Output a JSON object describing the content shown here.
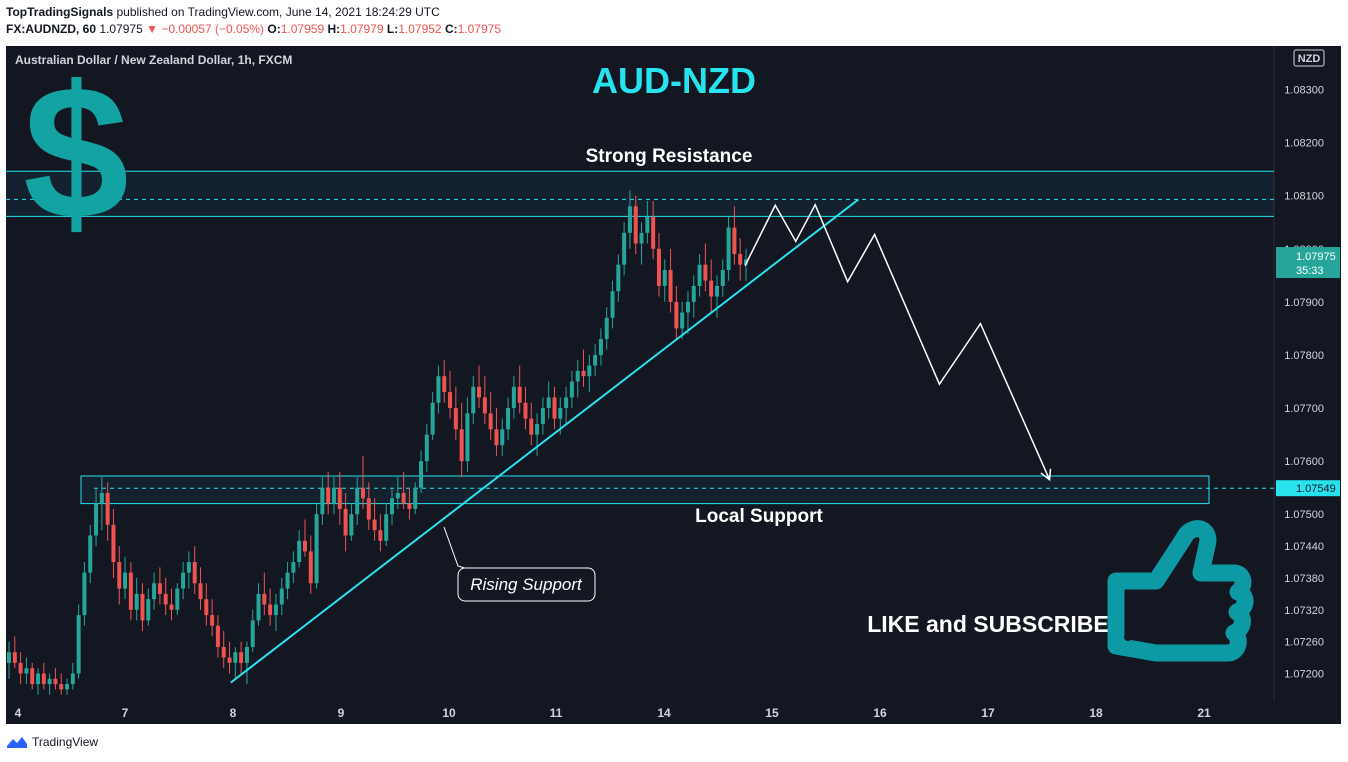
{
  "header": {
    "publisher": "TopTradingSignals",
    "published_text": "published on TradingView.com, June 14, 2021 18:24:29 UTC",
    "symbol": "FX:AUDNZD, 60",
    "last": "1.07975",
    "change": "▼ −0.00057 (−0.05%)",
    "o_label": "O:",
    "o": "1.07959",
    "h_label": "H:",
    "h": "1.07979",
    "l_label": "L:",
    "l": "1.07952",
    "c_label": "C:",
    "c": "1.07975"
  },
  "footer": {
    "brand": "TradingView"
  },
  "colors": {
    "background": "#131722",
    "up": "#26a69a",
    "down": "#ef5350",
    "accent": "#26e3ee",
    "price_tag": "#26a69a"
  },
  "chart_data": {
    "type": "candlestick",
    "instrument_label": "Australian Dollar / New Zealand Dollar, 1h, FXCM",
    "title": "AUD-NZD",
    "currency_label": "NZD",
    "price_tag": {
      "price": "1.07975",
      "countdown": "35:33"
    },
    "support_tag": "1.07549",
    "ylim": [
      1.0716,
      1.0838
    ],
    "y_ticks": [
      "1.08300",
      "1.08200",
      "1.08100",
      "1.08000",
      "1.07900",
      "1.07800",
      "1.07700",
      "1.07600",
      "1.07500",
      "1.07440",
      "1.07380",
      "1.07320",
      "1.07260",
      "1.07200"
    ],
    "x_ticks": [
      "4",
      "7",
      "8",
      "9",
      "10",
      "11",
      "14",
      "15",
      "16",
      "17",
      "18",
      "21"
    ],
    "resistance_zone": {
      "label": "Strong Resistance",
      "top": 1.08146,
      "bottom": 1.08061,
      "mid": 1.08093
    },
    "support_zone": {
      "label": "Local Support",
      "top": 1.07572,
      "bottom": 1.0752,
      "mid": 1.07549
    },
    "trendline_label": "Rising Support",
    "cta_text": "LIKE and SUBSCRIBE",
    "icons": [
      "dollar-sign-icon",
      "thumbs-up-icon"
    ],
    "swing_path": [
      {
        "day": "14",
        "offset": 0.75,
        "price": 1.07968
      },
      {
        "day": "14",
        "offset": 1.03,
        "price": 1.08082
      },
      {
        "day": "14",
        "offset": 1.22,
        "price": 1.08014
      },
      {
        "day": "14",
        "offset": 1.4,
        "price": 1.08083
      },
      {
        "day": "14",
        "offset": 1.7,
        "price": 1.07938
      },
      {
        "day": "14",
        "offset": 1.95,
        "price": 1.08027
      },
      {
        "day": "14",
        "offset": 2.55,
        "price": 1.07745
      },
      {
        "day": "14",
        "offset": 2.93,
        "price": 1.07859
      },
      {
        "day": "14",
        "offset": 3.57,
        "price": 1.07565
      }
    ],
    "trendline": [
      {
        "day": "8",
        "offset": -0.02,
        "price": 1.07183
      },
      {
        "day": "14",
        "offset": 1.8,
        "price": 1.08093
      }
    ],
    "candles_note": "approximate OHLC read from the chart",
    "candles": [
      [
        1.0722,
        1.0726,
        1.0719,
        1.0724
      ],
      [
        1.0724,
        1.0727,
        1.0721,
        1.0722
      ],
      [
        1.0722,
        1.0724,
        1.0718,
        1.072
      ],
      [
        1.072,
        1.0723,
        1.0718,
        1.0721
      ],
      [
        1.0721,
        1.0722,
        1.0717,
        1.0718
      ],
      [
        1.0718,
        1.0721,
        1.0716,
        1.072
      ],
      [
        1.072,
        1.0722,
        1.0717,
        1.0718
      ],
      [
        1.0718,
        1.072,
        1.0716,
        1.0719
      ],
      [
        1.0719,
        1.0721,
        1.0717,
        1.0718
      ],
      [
        1.0718,
        1.072,
        1.0716,
        1.0717
      ],
      [
        1.0717,
        1.0719,
        1.0716,
        1.0718
      ],
      [
        1.0718,
        1.0722,
        1.0717,
        1.072
      ],
      [
        1.072,
        1.0733,
        1.0719,
        1.0731
      ],
      [
        1.0731,
        1.0741,
        1.0729,
        1.0739
      ],
      [
        1.0739,
        1.0748,
        1.0737,
        1.0746
      ],
      [
        1.0746,
        1.0755,
        1.0744,
        1.0752
      ],
      [
        1.0752,
        1.0757,
        1.0747,
        1.0754
      ],
      [
        1.0754,
        1.0756,
        1.0745,
        1.0748
      ],
      [
        1.0748,
        1.0751,
        1.0738,
        1.0741
      ],
      [
        1.0741,
        1.0744,
        1.0733,
        1.0736
      ],
      [
        1.0736,
        1.0742,
        1.0734,
        1.0739
      ],
      [
        1.0739,
        1.0741,
        1.073,
        1.0732
      ],
      [
        1.0732,
        1.0738,
        1.073,
        1.0735
      ],
      [
        1.0735,
        1.0737,
        1.0728,
        1.073
      ],
      [
        1.073,
        1.0736,
        1.0729,
        1.0734
      ],
      [
        1.0734,
        1.0739,
        1.0732,
        1.0737
      ],
      [
        1.0737,
        1.074,
        1.0733,
        1.0735
      ],
      [
        1.0735,
        1.0738,
        1.0731,
        1.0733
      ],
      [
        1.0733,
        1.0736,
        1.073,
        1.0732
      ],
      [
        1.0732,
        1.0737,
        1.0731,
        1.0736
      ],
      [
        1.0736,
        1.0741,
        1.0734,
        1.0739
      ],
      [
        1.0739,
        1.0743,
        1.0736,
        1.0741
      ],
      [
        1.0741,
        1.0744,
        1.0735,
        1.0737
      ],
      [
        1.0737,
        1.074,
        1.0732,
        1.0734
      ],
      [
        1.0734,
        1.0737,
        1.0729,
        1.0731
      ],
      [
        1.0731,
        1.0734,
        1.0727,
        1.0729
      ],
      [
        1.0729,
        1.0731,
        1.0723,
        1.0725
      ],
      [
        1.0725,
        1.0728,
        1.0721,
        1.0723
      ],
      [
        1.0723,
        1.0726,
        1.072,
        1.0722
      ],
      [
        1.0722,
        1.0725,
        1.0719,
        1.0724
      ],
      [
        1.0724,
        1.0726,
        1.072,
        1.0722
      ],
      [
        1.0722,
        1.0726,
        1.0718,
        1.0725
      ],
      [
        1.0725,
        1.0732,
        1.0724,
        1.073
      ],
      [
        1.073,
        1.0737,
        1.0729,
        1.0735
      ],
      [
        1.0735,
        1.0739,
        1.0731,
        1.0733
      ],
      [
        1.0733,
        1.0736,
        1.0729,
        1.0731
      ],
      [
        1.0731,
        1.0735,
        1.0728,
        1.0733
      ],
      [
        1.0733,
        1.0738,
        1.0731,
        1.0736
      ],
      [
        1.0736,
        1.0741,
        1.0734,
        1.0739
      ],
      [
        1.0739,
        1.0743,
        1.0737,
        1.0741
      ],
      [
        1.0741,
        1.0747,
        1.074,
        1.0745
      ],
      [
        1.0745,
        1.0749,
        1.0742,
        1.0743
      ],
      [
        1.0743,
        1.0746,
        1.0735,
        1.0737
      ],
      [
        1.0737,
        1.0752,
        1.0736,
        1.075
      ],
      [
        1.075,
        1.0757,
        1.0748,
        1.0755
      ],
      [
        1.0755,
        1.0758,
        1.075,
        1.0752
      ],
      [
        1.0752,
        1.0757,
        1.075,
        1.0755
      ],
      [
        1.0755,
        1.0758,
        1.0748,
        1.0751
      ],
      [
        1.0751,
        1.0754,
        1.0743,
        1.0746
      ],
      [
        1.0746,
        1.0752,
        1.0745,
        1.075
      ],
      [
        1.075,
        1.0757,
        1.0748,
        1.0755
      ],
      [
        1.0755,
        1.0761,
        1.0751,
        1.0753
      ],
      [
        1.0753,
        1.0756,
        1.0747,
        1.0749
      ],
      [
        1.0749,
        1.0753,
        1.0745,
        1.0747
      ],
      [
        1.0747,
        1.075,
        1.0743,
        1.0745
      ],
      [
        1.0745,
        1.0752,
        1.0744,
        1.075
      ],
      [
        1.075,
        1.0755,
        1.0748,
        1.0753
      ],
      [
        1.0753,
        1.0757,
        1.0751,
        1.0754
      ],
      [
        1.0754,
        1.0758,
        1.0751,
        1.0752
      ],
      [
        1.0752,
        1.0755,
        1.0749,
        1.0751
      ],
      [
        1.0751,
        1.0756,
        1.075,
        1.0755
      ],
      [
        1.0755,
        1.0762,
        1.0754,
        1.076
      ],
      [
        1.076,
        1.0767,
        1.0758,
        1.0765
      ],
      [
        1.0765,
        1.0773,
        1.0764,
        1.0771
      ],
      [
        1.0771,
        1.0778,
        1.0769,
        1.0776
      ],
      [
        1.0776,
        1.0779,
        1.0771,
        1.0773
      ],
      [
        1.0773,
        1.0777,
        1.0768,
        1.077
      ],
      [
        1.077,
        1.0774,
        1.0764,
        1.0766
      ],
      [
        1.0766,
        1.0771,
        1.0757,
        1.076
      ],
      [
        1.076,
        1.0772,
        1.0758,
        1.0769
      ],
      [
        1.0769,
        1.0776,
        1.0767,
        1.0774
      ],
      [
        1.0774,
        1.0778,
        1.077,
        1.0772
      ],
      [
        1.0772,
        1.0776,
        1.0767,
        1.0769
      ],
      [
        1.0769,
        1.0773,
        1.0764,
        1.0766
      ],
      [
        1.0766,
        1.077,
        1.0761,
        1.0763
      ],
      [
        1.0763,
        1.0768,
        1.0761,
        1.0766
      ],
      [
        1.0766,
        1.0772,
        1.0764,
        1.077
      ],
      [
        1.077,
        1.0776,
        1.0768,
        1.0774
      ],
      [
        1.0774,
        1.0778,
        1.0769,
        1.0771
      ],
      [
        1.0771,
        1.0774,
        1.0766,
        1.0768
      ],
      [
        1.0768,
        1.0771,
        1.0763,
        1.0765
      ],
      [
        1.0765,
        1.0769,
        1.0761,
        1.0767
      ],
      [
        1.0767,
        1.0772,
        1.0765,
        1.077
      ],
      [
        1.077,
        1.0775,
        1.0768,
        1.0772
      ],
      [
        1.0772,
        1.0774,
        1.0766,
        1.0768
      ],
      [
        1.0768,
        1.0772,
        1.0765,
        1.077
      ],
      [
        1.077,
        1.0774,
        1.0767,
        1.0772
      ],
      [
        1.0772,
        1.0777,
        1.077,
        1.0775
      ],
      [
        1.0775,
        1.0779,
        1.0772,
        1.0777
      ],
      [
        1.0777,
        1.0781,
        1.0774,
        1.0776
      ],
      [
        1.0776,
        1.078,
        1.0773,
        1.0778
      ],
      [
        1.0778,
        1.0782,
        1.0776,
        1.078
      ],
      [
        1.078,
        1.0785,
        1.0778,
        1.0783
      ],
      [
        1.0783,
        1.0789,
        1.0781,
        1.0787
      ],
      [
        1.0787,
        1.0794,
        1.0785,
        1.0792
      ],
      [
        1.0792,
        1.0799,
        1.079,
        1.0797
      ],
      [
        1.0797,
        1.0805,
        1.0795,
        1.0803
      ],
      [
        1.0803,
        1.0811,
        1.08,
        1.0808
      ],
      [
        1.0808,
        1.081,
        1.0799,
        1.0801
      ],
      [
        1.0801,
        1.0805,
        1.0797,
        1.0803
      ],
      [
        1.0803,
        1.0809,
        1.0801,
        1.0806
      ],
      [
        1.0806,
        1.0809,
        1.0798,
        1.08
      ],
      [
        1.08,
        1.0803,
        1.0791,
        1.0793
      ],
      [
        1.0793,
        1.0798,
        1.079,
        1.0796
      ],
      [
        1.0796,
        1.08,
        1.0788,
        1.079
      ],
      [
        1.079,
        1.0793,
        1.0783,
        1.0785
      ],
      [
        1.0785,
        1.079,
        1.0783,
        1.0788
      ],
      [
        1.0788,
        1.0792,
        1.0784,
        1.079
      ],
      [
        1.079,
        1.0795,
        1.0787,
        1.0793
      ],
      [
        1.0793,
        1.0799,
        1.0791,
        1.0797
      ],
      [
        1.0797,
        1.0801,
        1.0792,
        1.0794
      ],
      [
        1.0794,
        1.0798,
        1.0788,
        1.0791
      ],
      [
        1.0791,
        1.0795,
        1.0787,
        1.0793
      ],
      [
        1.0793,
        1.0798,
        1.0791,
        1.0796
      ],
      [
        1.0796,
        1.0806,
        1.0794,
        1.0804
      ],
      [
        1.0804,
        1.0808,
        1.0797,
        1.0799
      ],
      [
        1.0799,
        1.0802,
        1.0794,
        1.0797
      ],
      [
        1.0797,
        1.08,
        1.0794,
        1.0798
      ]
    ]
  }
}
